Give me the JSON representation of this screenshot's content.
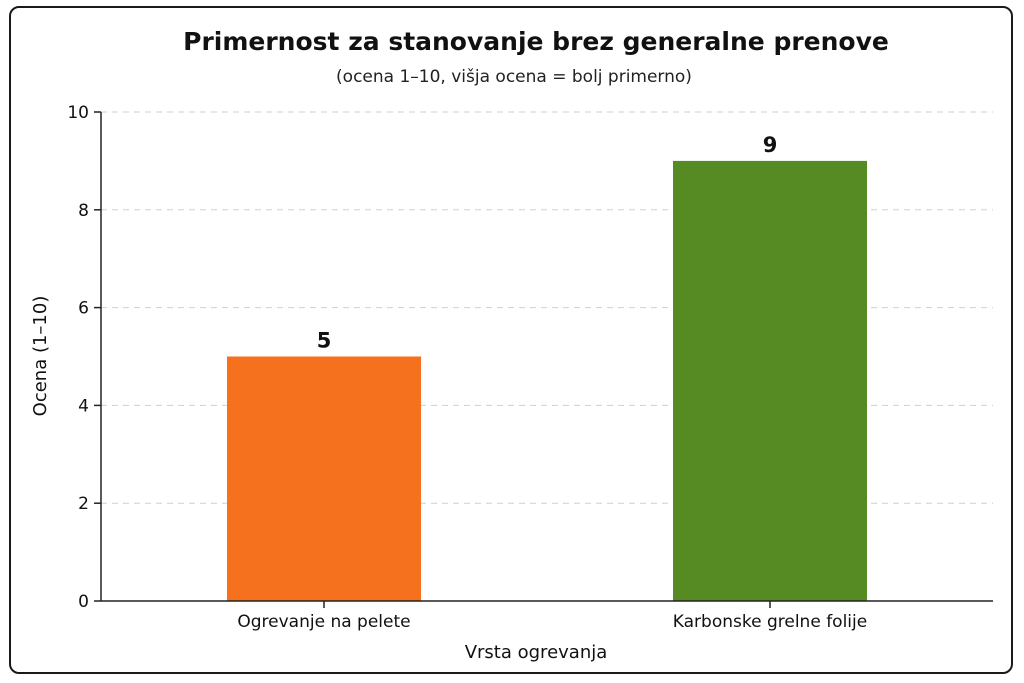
{
  "chart_data": {
    "type": "bar",
    "title": "Primernost za stanovanje brez generalne prenove",
    "subtitle": "(ocena 1–10, višja ocena = bolj primerno)",
    "xlabel": "Vrsta ogrevanja",
    "ylabel": "Ocena (1–10)",
    "categories": [
      "Ogrevanje na pelete",
      "Karbonske grelne folije"
    ],
    "values": [
      5,
      9
    ],
    "value_labels": [
      "5",
      "9"
    ],
    "bar_colors": [
      "#f5711e",
      "#568a23"
    ],
    "ylim": [
      0,
      10
    ],
    "yticks": [
      0,
      2,
      4,
      6,
      8,
      10
    ],
    "ytick_labels": [
      "0",
      "2",
      "4",
      "6",
      "8",
      "10"
    ],
    "grid": true,
    "legend": "none"
  }
}
